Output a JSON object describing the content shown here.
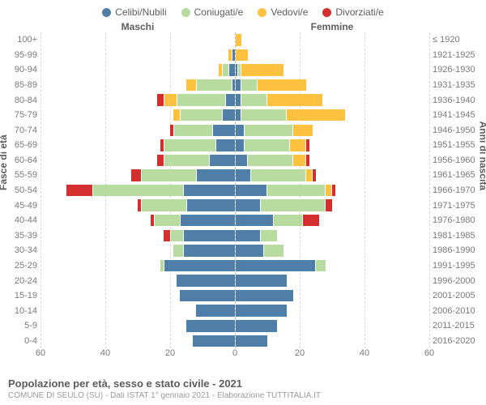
{
  "legend": [
    {
      "label": "Celibi/Nubili",
      "color": "#4f7ea8"
    },
    {
      "label": "Coniugati/e",
      "color": "#b8dba0"
    },
    {
      "label": "Vedovi/e",
      "color": "#ffc240"
    },
    {
      "label": "Divorziati/e",
      "color": "#d32f2f"
    }
  ],
  "header_male": "Maschi",
  "header_female": "Femmine",
  "axis_left_title": "Fasce di età",
  "axis_right_title": "Anni di nascita",
  "x_ticks": [
    60,
    40,
    20,
    0,
    20,
    40,
    60
  ],
  "x_max": 60,
  "footer_title": "Popolazione per età, sesso e stato civile - 2021",
  "footer_sub": "COMUNE DI SEULO (SU) - Dati ISTAT 1° gennaio 2021 - Elaborazione TUTTITALIA.IT",
  "colors": {
    "celibi": "#4f7ea8",
    "coniugati": "#b8dba0",
    "vedovi": "#ffc240",
    "divorziati": "#d32f2f",
    "grid": "#d8d8d8",
    "text": "#5c5c5c"
  },
  "rows": [
    {
      "age": "100+",
      "birth": "≤ 1920",
      "m": [
        0,
        0,
        0,
        0
      ],
      "f": [
        0,
        0,
        2,
        0
      ]
    },
    {
      "age": "95-99",
      "birth": "1921-1925",
      "m": [
        1,
        0,
        1,
        0
      ],
      "f": [
        0,
        0,
        4,
        0
      ]
    },
    {
      "age": "90-94",
      "birth": "1926-1930",
      "m": [
        2,
        2,
        1,
        0
      ],
      "f": [
        1,
        1,
        13,
        0
      ]
    },
    {
      "age": "85-89",
      "birth": "1931-1935",
      "m": [
        1,
        11,
        3,
        0
      ],
      "f": [
        2,
        5,
        15,
        0
      ]
    },
    {
      "age": "80-84",
      "birth": "1936-1940",
      "m": [
        3,
        15,
        4,
        2
      ],
      "f": [
        2,
        8,
        17,
        0
      ]
    },
    {
      "age": "75-79",
      "birth": "1941-1945",
      "m": [
        4,
        13,
        2,
        0
      ],
      "f": [
        2,
        14,
        18,
        0
      ]
    },
    {
      "age": "70-74",
      "birth": "1946-1950",
      "m": [
        7,
        12,
        0,
        1
      ],
      "f": [
        3,
        15,
        6,
        0
      ]
    },
    {
      "age": "65-69",
      "birth": "1951-1955",
      "m": [
        6,
        16,
        0,
        1
      ],
      "f": [
        3,
        14,
        5,
        1
      ]
    },
    {
      "age": "60-64",
      "birth": "1956-1960",
      "m": [
        8,
        14,
        0,
        2
      ],
      "f": [
        4,
        14,
        4,
        1
      ]
    },
    {
      "age": "55-59",
      "birth": "1961-1965",
      "m": [
        12,
        17,
        0,
        3
      ],
      "f": [
        5,
        17,
        2,
        1
      ]
    },
    {
      "age": "50-54",
      "birth": "1966-1970",
      "m": [
        16,
        28,
        0,
        8
      ],
      "f": [
        10,
        18,
        2,
        1
      ]
    },
    {
      "age": "45-49",
      "birth": "1971-1975",
      "m": [
        15,
        14,
        0,
        1
      ],
      "f": [
        8,
        20,
        0,
        2
      ]
    },
    {
      "age": "40-44",
      "birth": "1976-1980",
      "m": [
        17,
        8,
        0,
        1
      ],
      "f": [
        12,
        9,
        0,
        5
      ]
    },
    {
      "age": "35-39",
      "birth": "1981-1985",
      "m": [
        16,
        4,
        0,
        2
      ],
      "f": [
        8,
        5,
        0,
        0
      ]
    },
    {
      "age": "30-34",
      "birth": "1986-1990",
      "m": [
        16,
        3,
        0,
        0
      ],
      "f": [
        9,
        6,
        0,
        0
      ]
    },
    {
      "age": "25-29",
      "birth": "1991-1995",
      "m": [
        22,
        1,
        0,
        0
      ],
      "f": [
        25,
        3,
        0,
        0
      ]
    },
    {
      "age": "20-24",
      "birth": "1996-2000",
      "m": [
        18,
        0,
        0,
        0
      ],
      "f": [
        16,
        0,
        0,
        0
      ]
    },
    {
      "age": "15-19",
      "birth": "2001-2005",
      "m": [
        17,
        0,
        0,
        0
      ],
      "f": [
        18,
        0,
        0,
        0
      ]
    },
    {
      "age": "10-14",
      "birth": "2006-2010",
      "m": [
        12,
        0,
        0,
        0
      ],
      "f": [
        16,
        0,
        0,
        0
      ]
    },
    {
      "age": "5-9",
      "birth": "2011-2015",
      "m": [
        15,
        0,
        0,
        0
      ],
      "f": [
        13,
        0,
        0,
        0
      ]
    },
    {
      "age": "0-4",
      "birth": "2016-2020",
      "m": [
        13,
        0,
        0,
        0
      ],
      "f": [
        10,
        0,
        0,
        0
      ]
    }
  ]
}
